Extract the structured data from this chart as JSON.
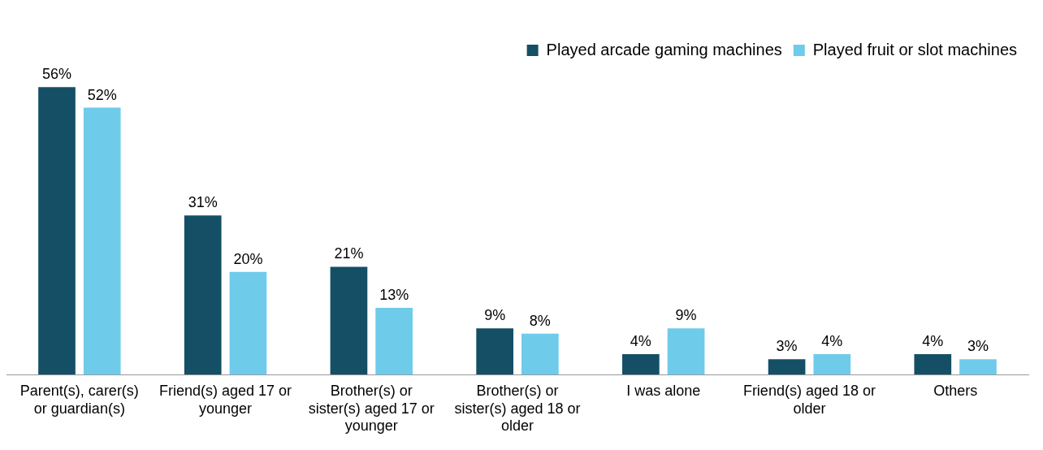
{
  "chart_data": {
    "type": "bar",
    "categories": [
      "Parent(s), carer(s) or guardian(s)",
      "Friend(s) aged 17 or younger",
      "Brother(s) or sister(s) aged 17 or younger",
      "Brother(s) or sister(s) aged 18 or older",
      "I was alone",
      "Friend(s) aged 18 or older",
      "Others"
    ],
    "series": [
      {
        "name": "Played arcade gaming machines",
        "color": "#144f66",
        "values": [
          56,
          31,
          21,
          9,
          4,
          3,
          4
        ],
        "value_labels": [
          "56%",
          "31%",
          "21%",
          "9%",
          "4%",
          "3%",
          "4%"
        ]
      },
      {
        "name": "Played fruit or slot machines",
        "color": "#6fcbea",
        "values": [
          52,
          20,
          13,
          8,
          9,
          4,
          3
        ],
        "value_labels": [
          "52%",
          "20%",
          "13%",
          "8%",
          "9%",
          "4%",
          "3%"
        ]
      }
    ],
    "legend": "top right",
    "grid": false,
    "tick_labels": "x"
  }
}
